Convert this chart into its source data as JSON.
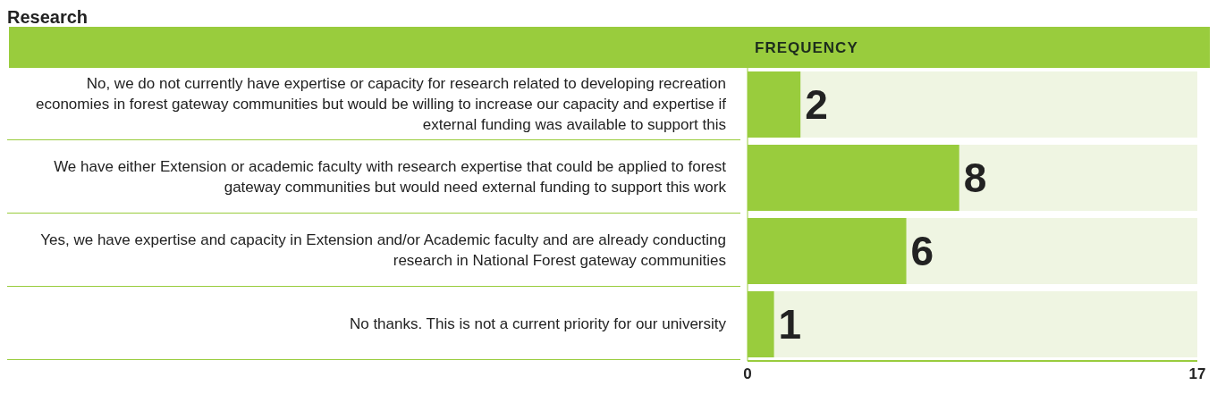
{
  "chart_data": {
    "type": "bar",
    "orientation": "horizontal",
    "title": "Research",
    "xlabel": "FREQUENCY",
    "categories": [
      "No, we do not currently have expertise or capacity for research related to developing recreation economies in forest gateway communities but would be willing to increase our capacity and expertise if external funding was available to support this",
      "We have either Extension or academic faculty with research expertise that could be applied to forest gateway communities but would need external funding to support this work",
      "Yes, we have expertise and capacity in Extension and/or Academic faculty and are already conducting research in National Forest gateway communities",
      "No thanks. This is not a current priority for our university"
    ],
    "values": [
      2,
      8,
      6,
      1
    ],
    "color": "#99cc3d",
    "xlim": [
      0,
      17
    ],
    "xticks": [
      0,
      17
    ],
    "data_labels": true
  }
}
